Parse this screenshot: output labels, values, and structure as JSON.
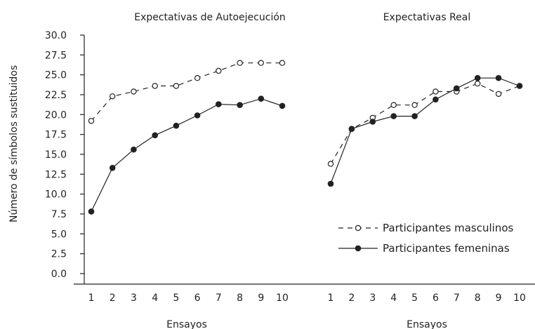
{
  "chart_data": [
    {
      "type": "line",
      "title": "Expectativas de Autoejecución",
      "xlabel": "Ensayos",
      "ylabel": "Número de símbolos sustituidos",
      "categories": [
        "1",
        "2",
        "3",
        "4",
        "5",
        "6",
        "7",
        "8",
        "9",
        "10"
      ],
      "ylim": [
        0,
        30
      ],
      "yticks": [
        "0.0",
        "2.5",
        "5.0",
        "7.5",
        "10.0",
        "12.5",
        "15.0",
        "17.5",
        "20.0",
        "22.5",
        "25.0",
        "27.5",
        "30.0"
      ],
      "series": [
        {
          "name": "Participantes masculinos",
          "style": "dashed",
          "marker": "open-circle",
          "values": [
            19.2,
            22.3,
            22.9,
            23.6,
            23.6,
            24.6,
            25.5,
            26.5,
            26.5,
            26.5
          ]
        },
        {
          "name": "Participantes femeninas",
          "style": "solid",
          "marker": "filled-circle",
          "values": [
            7.8,
            13.3,
            15.6,
            17.4,
            18.6,
            19.9,
            21.3,
            21.2,
            22.0,
            21.1
          ]
        }
      ]
    },
    {
      "type": "line",
      "title": "Expectativas Real",
      "xlabel": "Ensayos",
      "categories": [
        "1",
        "2",
        "3",
        "4",
        "5",
        "6",
        "7",
        "8",
        "9",
        "10"
      ],
      "ylim": [
        0,
        30
      ],
      "series": [
        {
          "name": "Participantes masculinos",
          "style": "dashed",
          "marker": "open-circle",
          "values": [
            13.8,
            18.2,
            19.6,
            21.2,
            21.2,
            22.9,
            22.9,
            23.9,
            22.6,
            23.6
          ]
        },
        {
          "name": "Participantes femeninas",
          "style": "solid",
          "marker": "filled-circle",
          "values": [
            11.3,
            18.2,
            19.1,
            19.8,
            19.8,
            21.9,
            23.3,
            24.6,
            24.6,
            23.6
          ]
        }
      ]
    }
  ],
  "legend": {
    "placement": "bottom-right",
    "entries": [
      "Participantes masculinos",
      "Participantes femeninas"
    ]
  },
  "colors": {
    "line": "#222222",
    "text": "#222222",
    "background": "#ffffff"
  }
}
